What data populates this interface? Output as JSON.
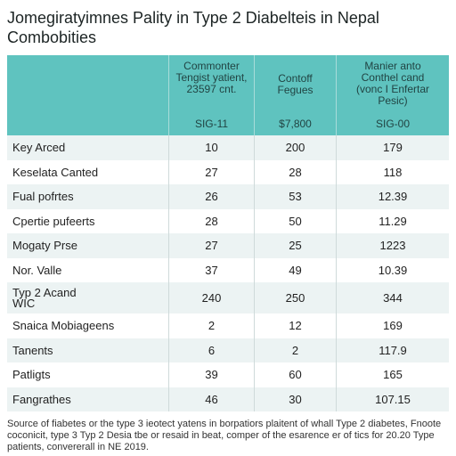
{
  "title": {
    "line1": "Jomegiratyimnes Pality in Type 2 Diabelteis in Nepal",
    "line2": "Combobities"
  },
  "table": {
    "columns": [
      {
        "label_lines": [
          "Commonter",
          "Tengist yatient,",
          "23597 cnt."
        ],
        "sub": "SIG-11"
      },
      {
        "label_lines": [
          "Contoff",
          "Fegues"
        ],
        "sub": "$7,800"
      },
      {
        "label_lines": [
          "Manier anto",
          "Conthel cand",
          "(vonc I Enfertar",
          "Pesic)"
        ],
        "sub": "SIG-00"
      }
    ],
    "rows": [
      {
        "name": "Key Arced",
        "v1": "10",
        "v2": "200",
        "v3": "179"
      },
      {
        "name": "Keselata Canted",
        "v1": "27",
        "v2": "28",
        "v3": "118"
      },
      {
        "name": "Fual pofrtes",
        "v1": "26",
        "v2": "53",
        "v3": "12.39"
      },
      {
        "name": "Cpertie pufeerts",
        "v1": "28",
        "v2": "50",
        "v3": "11.29"
      },
      {
        "name": "Mogaty Prse",
        "v1": "27",
        "v2": "25",
        "v3": "1223"
      },
      {
        "name": "Nor. Valle",
        "v1": "37",
        "v2": "49",
        "v3": "10.39"
      },
      {
        "name": "Typ 2 Acand",
        "name2": "WIC",
        "v1": "240",
        "v2": "250",
        "v3": "344"
      },
      {
        "name": "Snaica Mobiageens",
        "v1": "2",
        "v2": "12",
        "v3": "169"
      },
      {
        "name": "Tanents",
        "v1": "6",
        "v2": "2",
        "v3": "117.9"
      },
      {
        "name": "Patligts",
        "v1": "39",
        "v2": "60",
        "v3": "165"
      },
      {
        "name": "Fangrathes",
        "v1": "46",
        "v2": "30",
        "v3": "107.15"
      }
    ]
  },
  "note": {
    "line1": "Source of fiabetes or the type 3 ieotect yatens in borpatiors plaitent of whall Type 2 diabetes, Fnoote",
    "line2": "coconicit, type 3 Typ 2 Desia tbe or resaid in beat, comper of the esarence er of tics for 20.20 Type",
    "line3": "patients, convererall in NE 2019."
  }
}
